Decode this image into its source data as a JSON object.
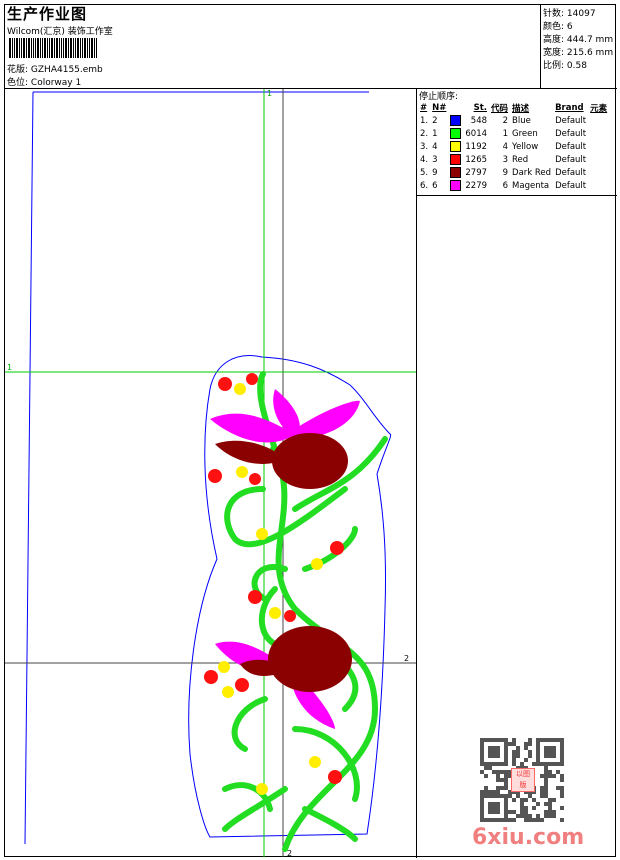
{
  "header": {
    "title": "生产作业图",
    "company": "Wilcom(汇京) 装饰工作室",
    "design_label": "花版:",
    "design_value": "GZHA4155.emb",
    "colorway_label": "色位:",
    "colorway_value": "Colorway 1"
  },
  "stats": {
    "stitches_label": "针数:",
    "stitches": "14097",
    "colors_label": "颜色:",
    "colors": "6",
    "height_label": "高度:",
    "height": "444.7 mm",
    "width_label": "宽度:",
    "width": "215.6 mm",
    "scale_label": "比例:",
    "scale": "0.58"
  },
  "stop_sequence": {
    "title": "停止顺序:",
    "columns": [
      "#",
      "N#",
      "St.",
      "代码",
      "描述",
      "Brand",
      "元素"
    ],
    "rows": [
      {
        "idx": "1.",
        "n": "2",
        "color": "#0000ff",
        "st": "548",
        "code": "2",
        "desc": "Blue",
        "brand": "Default"
      },
      {
        "idx": "2.",
        "n": "1",
        "color": "#00ff00",
        "st": "6014",
        "code": "1",
        "desc": "Green",
        "brand": "Default"
      },
      {
        "idx": "3.",
        "n": "4",
        "color": "#ffff00",
        "st": "1192",
        "code": "4",
        "desc": "Yellow",
        "brand": "Default"
      },
      {
        "idx": "4.",
        "n": "3",
        "color": "#ff0000",
        "st": "1265",
        "code": "3",
        "desc": "Red",
        "brand": "Default"
      },
      {
        "idx": "5.",
        "n": "9",
        "color": "#8b0000",
        "st": "2797",
        "code": "9",
        "desc": "Dark Red",
        "brand": "Default"
      },
      {
        "idx": "6.",
        "n": "6",
        "color": "#ff00ff",
        "st": "2279",
        "code": "6",
        "desc": "Magenta",
        "brand": "Default"
      }
    ]
  },
  "guides": {
    "v1": "1",
    "h1": "1",
    "v2": "2",
    "h2": "2"
  },
  "watermark": {
    "text": "6xiu.com",
    "stamp": "以图版"
  }
}
